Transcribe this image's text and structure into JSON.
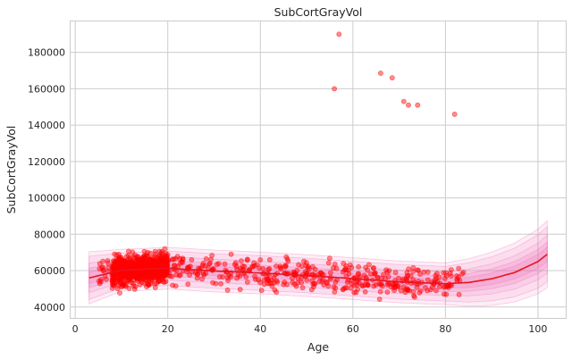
{
  "chart_data": {
    "type": "scatter",
    "title": "SubCortGrayVol",
    "xlabel": "Age",
    "ylabel": "SubCortGrayVol",
    "xlim": [
      -1,
      106
    ],
    "ylim": [
      34000,
      197000
    ],
    "xticks": [
      0,
      20,
      40,
      60,
      80,
      100
    ],
    "yticks": [
      40000,
      60000,
      80000,
      100000,
      120000,
      140000,
      160000,
      180000
    ],
    "grid": true,
    "point_color": "#ff0000",
    "fit_color": "#e8141e",
    "band_color": "#f06ab4",
    "outliers": [
      {
        "x": 56,
        "y": 160000
      },
      {
        "x": 57,
        "y": 190000
      },
      {
        "x": 66,
        "y": 168500
      },
      {
        "x": 68.5,
        "y": 166000
      },
      {
        "x": 71,
        "y": 153000
      },
      {
        "x": 72,
        "y": 151000
      },
      {
        "x": 74,
        "y": 151000
      },
      {
        "x": 82,
        "y": 146000
      }
    ],
    "fit_curve": {
      "x": [
        3,
        10,
        20,
        30,
        40,
        50,
        60,
        70,
        80,
        85,
        90,
        95,
        100,
        102
      ],
      "y": [
        56000,
        60200,
        61300,
        59800,
        58700,
        57300,
        55600,
        53800,
        52800,
        53500,
        55500,
        59000,
        65000,
        69000
      ]
    },
    "prediction_bands": {
      "offsets_inner": [
        2500,
        4300
      ],
      "offsets_outer": [
        6500,
        9500,
        11500
      ]
    },
    "bulk_distribution": {
      "age_range": [
        5,
        84
      ],
      "dense_cluster_age": [
        8,
        20
      ],
      "spread": 5500,
      "min_value": 41000,
      "max_value": 78000
    }
  }
}
